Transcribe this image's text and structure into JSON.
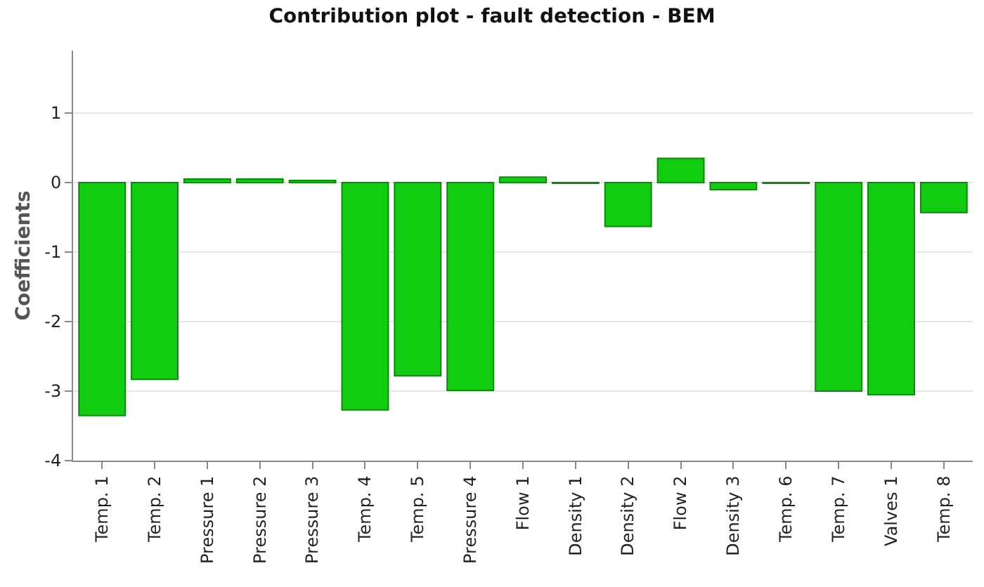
{
  "chart_data": {
    "type": "bar",
    "title": "Contribution plot - fault detection - BEM",
    "ylabel": "Coefficients",
    "categories": [
      "Temp. 1",
      "Temp. 2",
      "Pressure 1",
      "Pressure 2",
      "Pressure 3",
      "Temp. 4",
      "Temp. 5",
      "Pressure 4",
      "Flow 1",
      "Density 1",
      "Density 2",
      "Flow 2",
      "Density 3",
      "Temp. 6",
      "Temp. 7",
      "Valves 1",
      "Temp. 8"
    ],
    "values": [
      -3.35,
      -2.83,
      0.05,
      0.05,
      0.03,
      -3.27,
      -2.78,
      -2.99,
      0.08,
      -0.01,
      -0.63,
      0.35,
      -0.1,
      -0.01,
      -3.0,
      -3.05,
      -0.43
    ],
    "color": "#11cc11",
    "ylim": [
      -4,
      1.9
    ],
    "yticks": [
      -4,
      -3,
      -2,
      -1,
      0,
      1
    ],
    "grid": "y"
  }
}
